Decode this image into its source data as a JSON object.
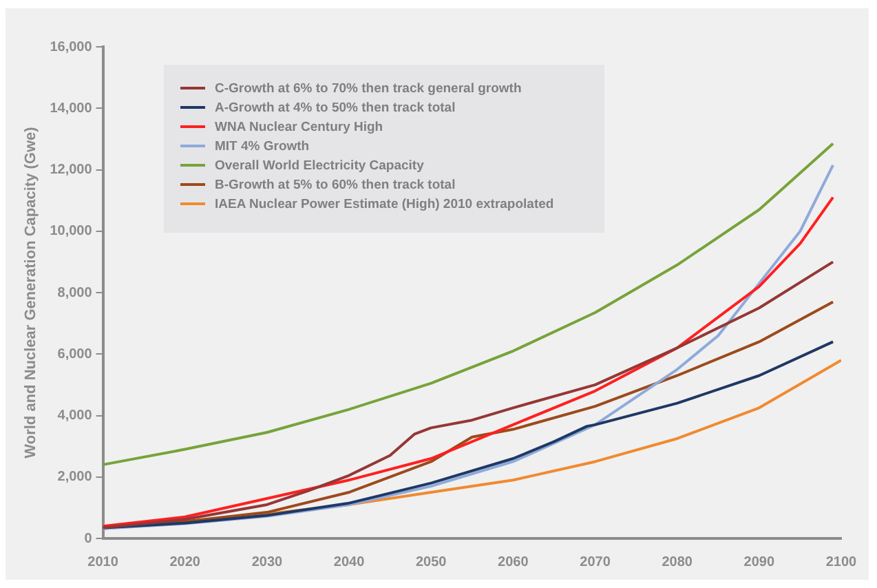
{
  "chart_data": {
    "type": "line",
    "ylabel": "World and Nuclear Generation Capacity (Gwe)",
    "xlim": [
      2010,
      2100
    ],
    "xticks": [
      2010,
      2020,
      2030,
      2040,
      2050,
      2060,
      2070,
      2080,
      2090,
      2100
    ],
    "ylim": [
      0,
      16000
    ],
    "yticks": [
      0,
      {
        "value": 2000,
        "label": "2,000"
      },
      {
        "value": 4000,
        "label": "4,000"
      },
      {
        "value": 6000,
        "label": "6,000"
      },
      {
        "value": 8000,
        "label": "8,000"
      },
      {
        "value": 10000,
        "label": "10,000"
      },
      {
        "value": 12000,
        "label": "12,000"
      },
      {
        "value": 14000,
        "label": "14,000"
      },
      {
        "value": 16000,
        "label": "16,000"
      }
    ],
    "grid": false,
    "legend": "top left",
    "marker": "none",
    "line_style": "solid",
    "series": [
      {
        "name": "C-Growth at 6% to 70% then track general growth",
        "color": "#953735",
        "x": [
          2010,
          2020,
          2030,
          2035,
          2040,
          2045,
          2048,
          2050,
          2055,
          2060,
          2070,
          2080,
          2090,
          2099
        ],
        "values": [
          350,
          620,
          1100,
          1550,
          2050,
          2700,
          3400,
          3600,
          3850,
          4250,
          5000,
          6200,
          7500,
          9000
        ]
      },
      {
        "name": "A-Growth at 4% to 50% then track total",
        "color": "#1f3864",
        "x": [
          2010,
          2020,
          2030,
          2040,
          2050,
          2060,
          2065,
          2069,
          2070,
          2080,
          2090,
          2099
        ],
        "values": [
          350,
          500,
          750,
          1150,
          1800,
          2600,
          3150,
          3650,
          3700,
          4400,
          5300,
          6400
        ]
      },
      {
        "name": "WNA Nuclear Century High",
        "color": "#ff2020",
        "x": [
          2010,
          2020,
          2030,
          2040,
          2050,
          2060,
          2070,
          2080,
          2090,
          2095,
          2099
        ],
        "values": [
          400,
          700,
          1300,
          1900,
          2600,
          3700,
          4800,
          6200,
          8200,
          9600,
          11100
        ]
      },
      {
        "name": "MIT 4% Growth",
        "color": "#8eaadb",
        "x": [
          2010,
          2020,
          2030,
          2040,
          2050,
          2060,
          2070,
          2080,
          2085,
          2090,
          2095,
          2099
        ],
        "values": [
          320,
          480,
          720,
          1100,
          1700,
          2500,
          3700,
          5500,
          6600,
          8300,
          10000,
          12150
        ]
      },
      {
        "name": "Overall World Electricity Capacity",
        "color": "#77a33a",
        "x": [
          2010,
          2020,
          2030,
          2040,
          2050,
          2060,
          2070,
          2080,
          2090,
          2099
        ],
        "values": [
          2400,
          2900,
          3450,
          4200,
          5050,
          6100,
          7350,
          8900,
          10700,
          12850
        ]
      },
      {
        "name": "B-Growth at 5% to 60% then track total",
        "color": "#9c4a1c",
        "x": [
          2010,
          2020,
          2030,
          2040,
          2050,
          2055,
          2060,
          2070,
          2080,
          2090,
          2099
        ],
        "values": [
          350,
          550,
          850,
          1500,
          2500,
          3300,
          3550,
          4300,
          5300,
          6400,
          7700
        ]
      },
      {
        "name": "IAEA Nuclear Power Estimate (High) 2010 extrapolated",
        "color": "#f08a30",
        "x": [
          2010,
          2020,
          2030,
          2040,
          2050,
          2060,
          2070,
          2080,
          2090,
          2100
        ],
        "values": [
          320,
          550,
          800,
          1100,
          1500,
          1900,
          2500,
          3250,
          4250,
          5800
        ]
      }
    ]
  }
}
